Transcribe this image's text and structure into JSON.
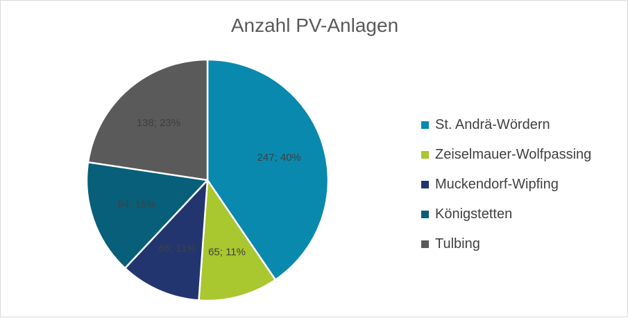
{
  "chart_data": {
    "type": "pie",
    "title": "Anzahl PV-Anlagen",
    "categories": [
      "St. Andrä-Wördern",
      "Zeiselmauer-Wolfpassing",
      "Muckendorf-Wipfing",
      "Königstetten",
      "Tulbing"
    ],
    "values": [
      247,
      65,
      66,
      94,
      138
    ],
    "data_labels": [
      "247; 40%",
      "65; 11%",
      "66; 11%",
      "94; 15%",
      "138; 23%"
    ],
    "colors": [
      "#0a89ae",
      "#a9c72f",
      "#23356f",
      "#075f7a",
      "#5a5a5a"
    ],
    "legend_position": "right",
    "start_angle_deg": 0,
    "direction": "clockwise"
  }
}
